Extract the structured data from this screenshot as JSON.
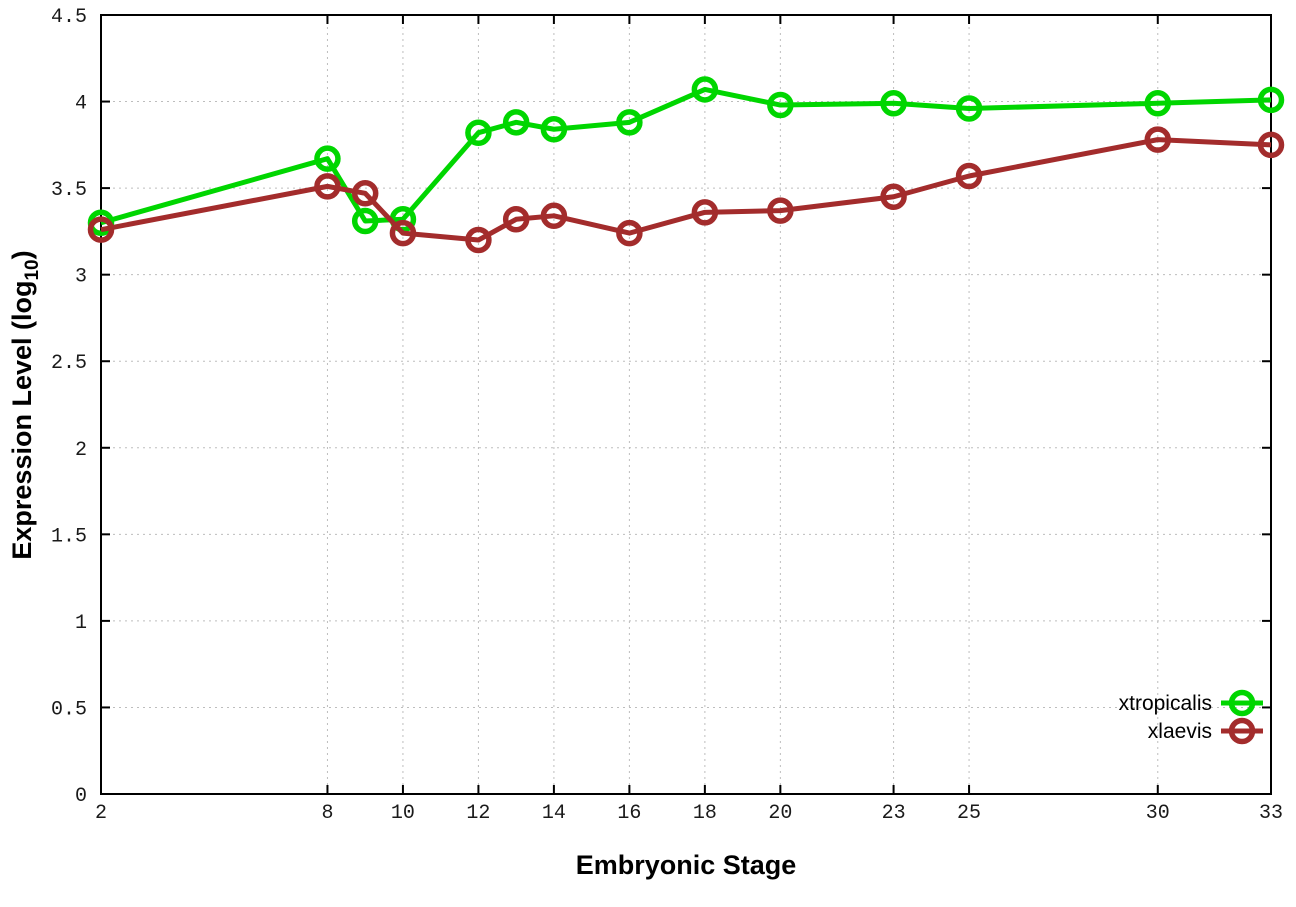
{
  "chart_data": {
    "type": "line",
    "title": "",
    "xlabel": "Embryonic Stage",
    "ylabel": "Expression Level (log10)",
    "ylabel_parts": {
      "main": "Expression Level (log",
      "sub": "10",
      "end": ")"
    },
    "x": [
      2,
      8,
      9,
      10,
      12,
      13,
      14,
      16,
      18,
      20,
      23,
      25,
      30,
      33
    ],
    "series": [
      {
        "name": "xtropicalis",
        "color": "#00d600",
        "values": [
          3.3,
          3.67,
          3.31,
          3.32,
          3.82,
          3.88,
          3.84,
          3.88,
          4.07,
          3.98,
          3.99,
          3.96,
          3.99,
          4.01
        ]
      },
      {
        "name": "xlaevis",
        "color": "#a32c2c",
        "values": [
          3.26,
          3.51,
          3.47,
          3.24,
          3.2,
          3.32,
          3.34,
          3.24,
          3.36,
          3.37,
          3.45,
          3.57,
          3.78,
          3.75
        ]
      }
    ],
    "xlim": [
      2,
      33
    ],
    "ylim": [
      0,
      4.5
    ],
    "xticks": {
      "values": [
        2,
        8,
        10,
        12,
        14,
        16,
        18,
        20,
        23,
        25,
        30,
        33
      ],
      "labels": [
        "2",
        "8",
        "10",
        "12",
        "14",
        "16",
        "18",
        "20",
        "23",
        "25",
        "30",
        "33"
      ]
    },
    "yticks": {
      "values": [
        0,
        0.5,
        1,
        1.5,
        2,
        2.5,
        3,
        3.5,
        4,
        4.5
      ],
      "labels": [
        "0",
        "0.5",
        "1",
        "1.5",
        "2",
        "2.5",
        "3",
        "3.5",
        "4",
        "4.5"
      ]
    },
    "grid": true,
    "marker": "open-circle",
    "legend": {
      "position": "bottom-right",
      "entries": [
        "xtropicalis",
        "xlaevis"
      ]
    }
  },
  "colors": {
    "background": "#ffffff",
    "grid": "#bdbdbd",
    "border": "#000000",
    "tick": "#000000",
    "tick_label": "#1a1a1a",
    "xtropicalis": "#00d600",
    "xlaevis": "#a32c2c"
  }
}
